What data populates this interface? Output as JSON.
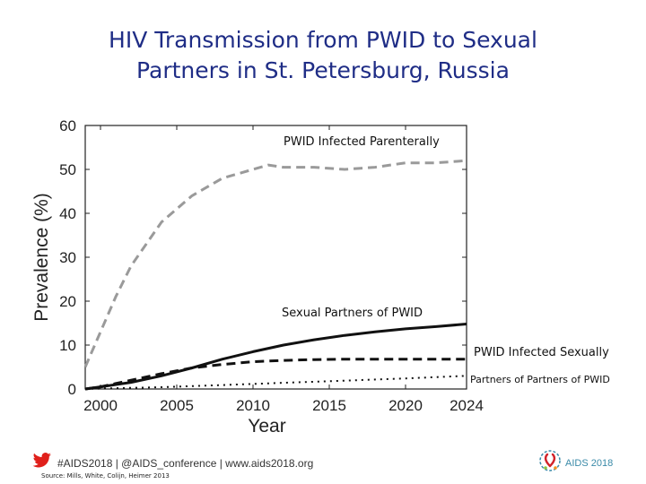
{
  "title": {
    "line1": "HIV Transmission from PWID to Sexual",
    "line2": "Partners in St. Petersburg, Russia"
  },
  "chart_data": {
    "type": "line",
    "title": "HIV Transmission from PWID to Sexual Partners in St. Petersburg, Russia",
    "xlabel": "Year",
    "ylabel": "Prevalence (%)",
    "xlim": [
      1999,
      2024
    ],
    "ylim": [
      0,
      60
    ],
    "xticks": [
      2000,
      2005,
      2010,
      2015,
      2020,
      2024
    ],
    "yticks": [
      0,
      10,
      20,
      30,
      40,
      50,
      60
    ],
    "grid": false,
    "series": [
      {
        "name": "PWID Infected Parenterally",
        "style": "dashed-gray",
        "color": "#9a9a9a",
        "x": [
          1999,
          2000,
          2001,
          2002,
          2003,
          2004,
          2005,
          2006,
          2007,
          2008,
          2009,
          2010,
          2011,
          2012,
          2014,
          2016,
          2018,
          2020,
          2022,
          2024
        ],
        "y": [
          5,
          13,
          21,
          28,
          33,
          38,
          41,
          44,
          46,
          48,
          49,
          50,
          51,
          50.5,
          50.5,
          50,
          50.5,
          51.5,
          51.5,
          52
        ]
      },
      {
        "name": "Sexual Partners of PWID",
        "style": "solid-black",
        "color": "#111111",
        "x": [
          1999,
          2000,
          2002,
          2004,
          2006,
          2008,
          2010,
          2012,
          2014,
          2016,
          2018,
          2020,
          2022,
          2024
        ],
        "y": [
          0,
          0.5,
          1.5,
          3,
          4.8,
          6.8,
          8.5,
          10,
          11.2,
          12.2,
          13,
          13.7,
          14.2,
          14.8
        ]
      },
      {
        "name": "PWID Infected Sexually",
        "style": "dashed-black",
        "color": "#111111",
        "x": [
          1999,
          2000,
          2002,
          2004,
          2006,
          2008,
          2010,
          2012,
          2014,
          2016,
          2018,
          2020,
          2022,
          2024
        ],
        "y": [
          0,
          0.5,
          2,
          3.5,
          4.8,
          5.6,
          6.2,
          6.5,
          6.7,
          6.8,
          6.8,
          6.8,
          6.8,
          6.8
        ]
      },
      {
        "name": "Partners of Partners of PWID",
        "style": "dotted-black",
        "color": "#111111",
        "x": [
          1999,
          2000,
          2004,
          2008,
          2012,
          2016,
          2020,
          2024
        ],
        "y": [
          0,
          0.1,
          0.4,
          0.9,
          1.4,
          1.9,
          2.4,
          3.0
        ]
      }
    ]
  },
  "footer": {
    "hashtag_text": "#AIDS2018 | @AIDS_conference | www.aids2018.org",
    "source_text": "Source: Mills, White, Colijn, Heimer 2013",
    "logo_text": "AIDS 2018"
  },
  "colors": {
    "title": "#1f2d86",
    "twitter": "#e0201b",
    "logo_accent": "#3a8aa8"
  }
}
